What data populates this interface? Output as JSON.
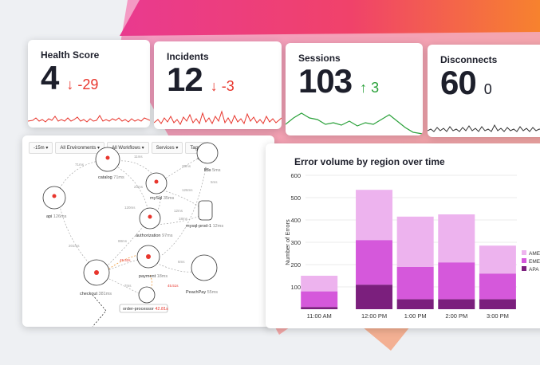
{
  "colors": {
    "accent_red": "#e8362d",
    "accent_green": "#2aa13a",
    "series_amer": "#edb3ee",
    "series_emea": "#d558db",
    "series_apac": "#7b1f7d"
  },
  "kpis": [
    {
      "title": "Health Score",
      "value": "4",
      "delta": "↓ -29",
      "trend": "down"
    },
    {
      "title": "Incidents",
      "value": "12",
      "delta": "↓ -3",
      "trend": "down"
    },
    {
      "title": "Sessions",
      "value": "103",
      "delta": "↑ 3",
      "trend": "up"
    },
    {
      "title": "Disconnects",
      "value": "60",
      "delta": "0",
      "trend": "flat"
    }
  ],
  "map": {
    "toolbar": [
      "-15m ▾",
      "All Environments ▾",
      "All Workflows ▾",
      "Services ▾",
      "Tags ▾"
    ],
    "nodes": [
      {
        "name": "catalog",
        "meta": "71ms"
      },
      {
        "name": "api",
        "meta": "126ms"
      },
      {
        "name": "mySql",
        "meta": "35ms"
      },
      {
        "name": "authorization",
        "meta": "97ms"
      },
      {
        "name": "mysql-prod-1",
        "meta": "12ms"
      },
      {
        "name": "k8s",
        "meta": "5ms"
      },
      {
        "name": "checkout",
        "meta": "381ms"
      },
      {
        "name": "payment",
        "meta": "18ms"
      },
      {
        "name": "PeachPay",
        "meta": "55ms"
      },
      {
        "name": "order-processor",
        "meta": "42.81s"
      }
    ],
    "edge_labels": [
      "71ms",
      "11ms",
      "35ms",
      "23ms",
      "126ms",
      "201ms",
      "88ms",
      "45.52s",
      "45.51s",
      "120ms",
      "18ms",
      "7ms",
      "6ms",
      "12ms",
      "5ms"
    ]
  },
  "chart_data": {
    "type": "bar",
    "stacked": true,
    "title": "Error volume by region over time",
    "ylabel": "Number of Errors",
    "xlabel": "",
    "ylim": [
      0,
      600
    ],
    "yticks": [
      100,
      200,
      300,
      400,
      500,
      600
    ],
    "categories": [
      "11:00 AM",
      "12:00 PM",
      "1:00 PM",
      "2:00 PM",
      "3:00 PM"
    ],
    "x_tick_labels": [
      "11:00 AM",
      "12:00 PM",
      "1:00 PM",
      "2:00 PM",
      "3:00 PM"
    ],
    "x_positions": [
      11.0,
      12.0,
      12.75,
      13.5,
      14.25
    ],
    "series": [
      {
        "name": "APAC",
        "values": [
          10,
          110,
          45,
          45,
          45
        ]
      },
      {
        "name": "EMEA",
        "values": [
          70,
          200,
          145,
          165,
          115
        ]
      },
      {
        "name": "AMER",
        "values": [
          70,
          225,
          225,
          215,
          125
        ]
      }
    ],
    "legend": {
      "placement": "right",
      "labels": [
        "AME",
        "EME",
        "APA"
      ]
    },
    "grid": true
  }
}
